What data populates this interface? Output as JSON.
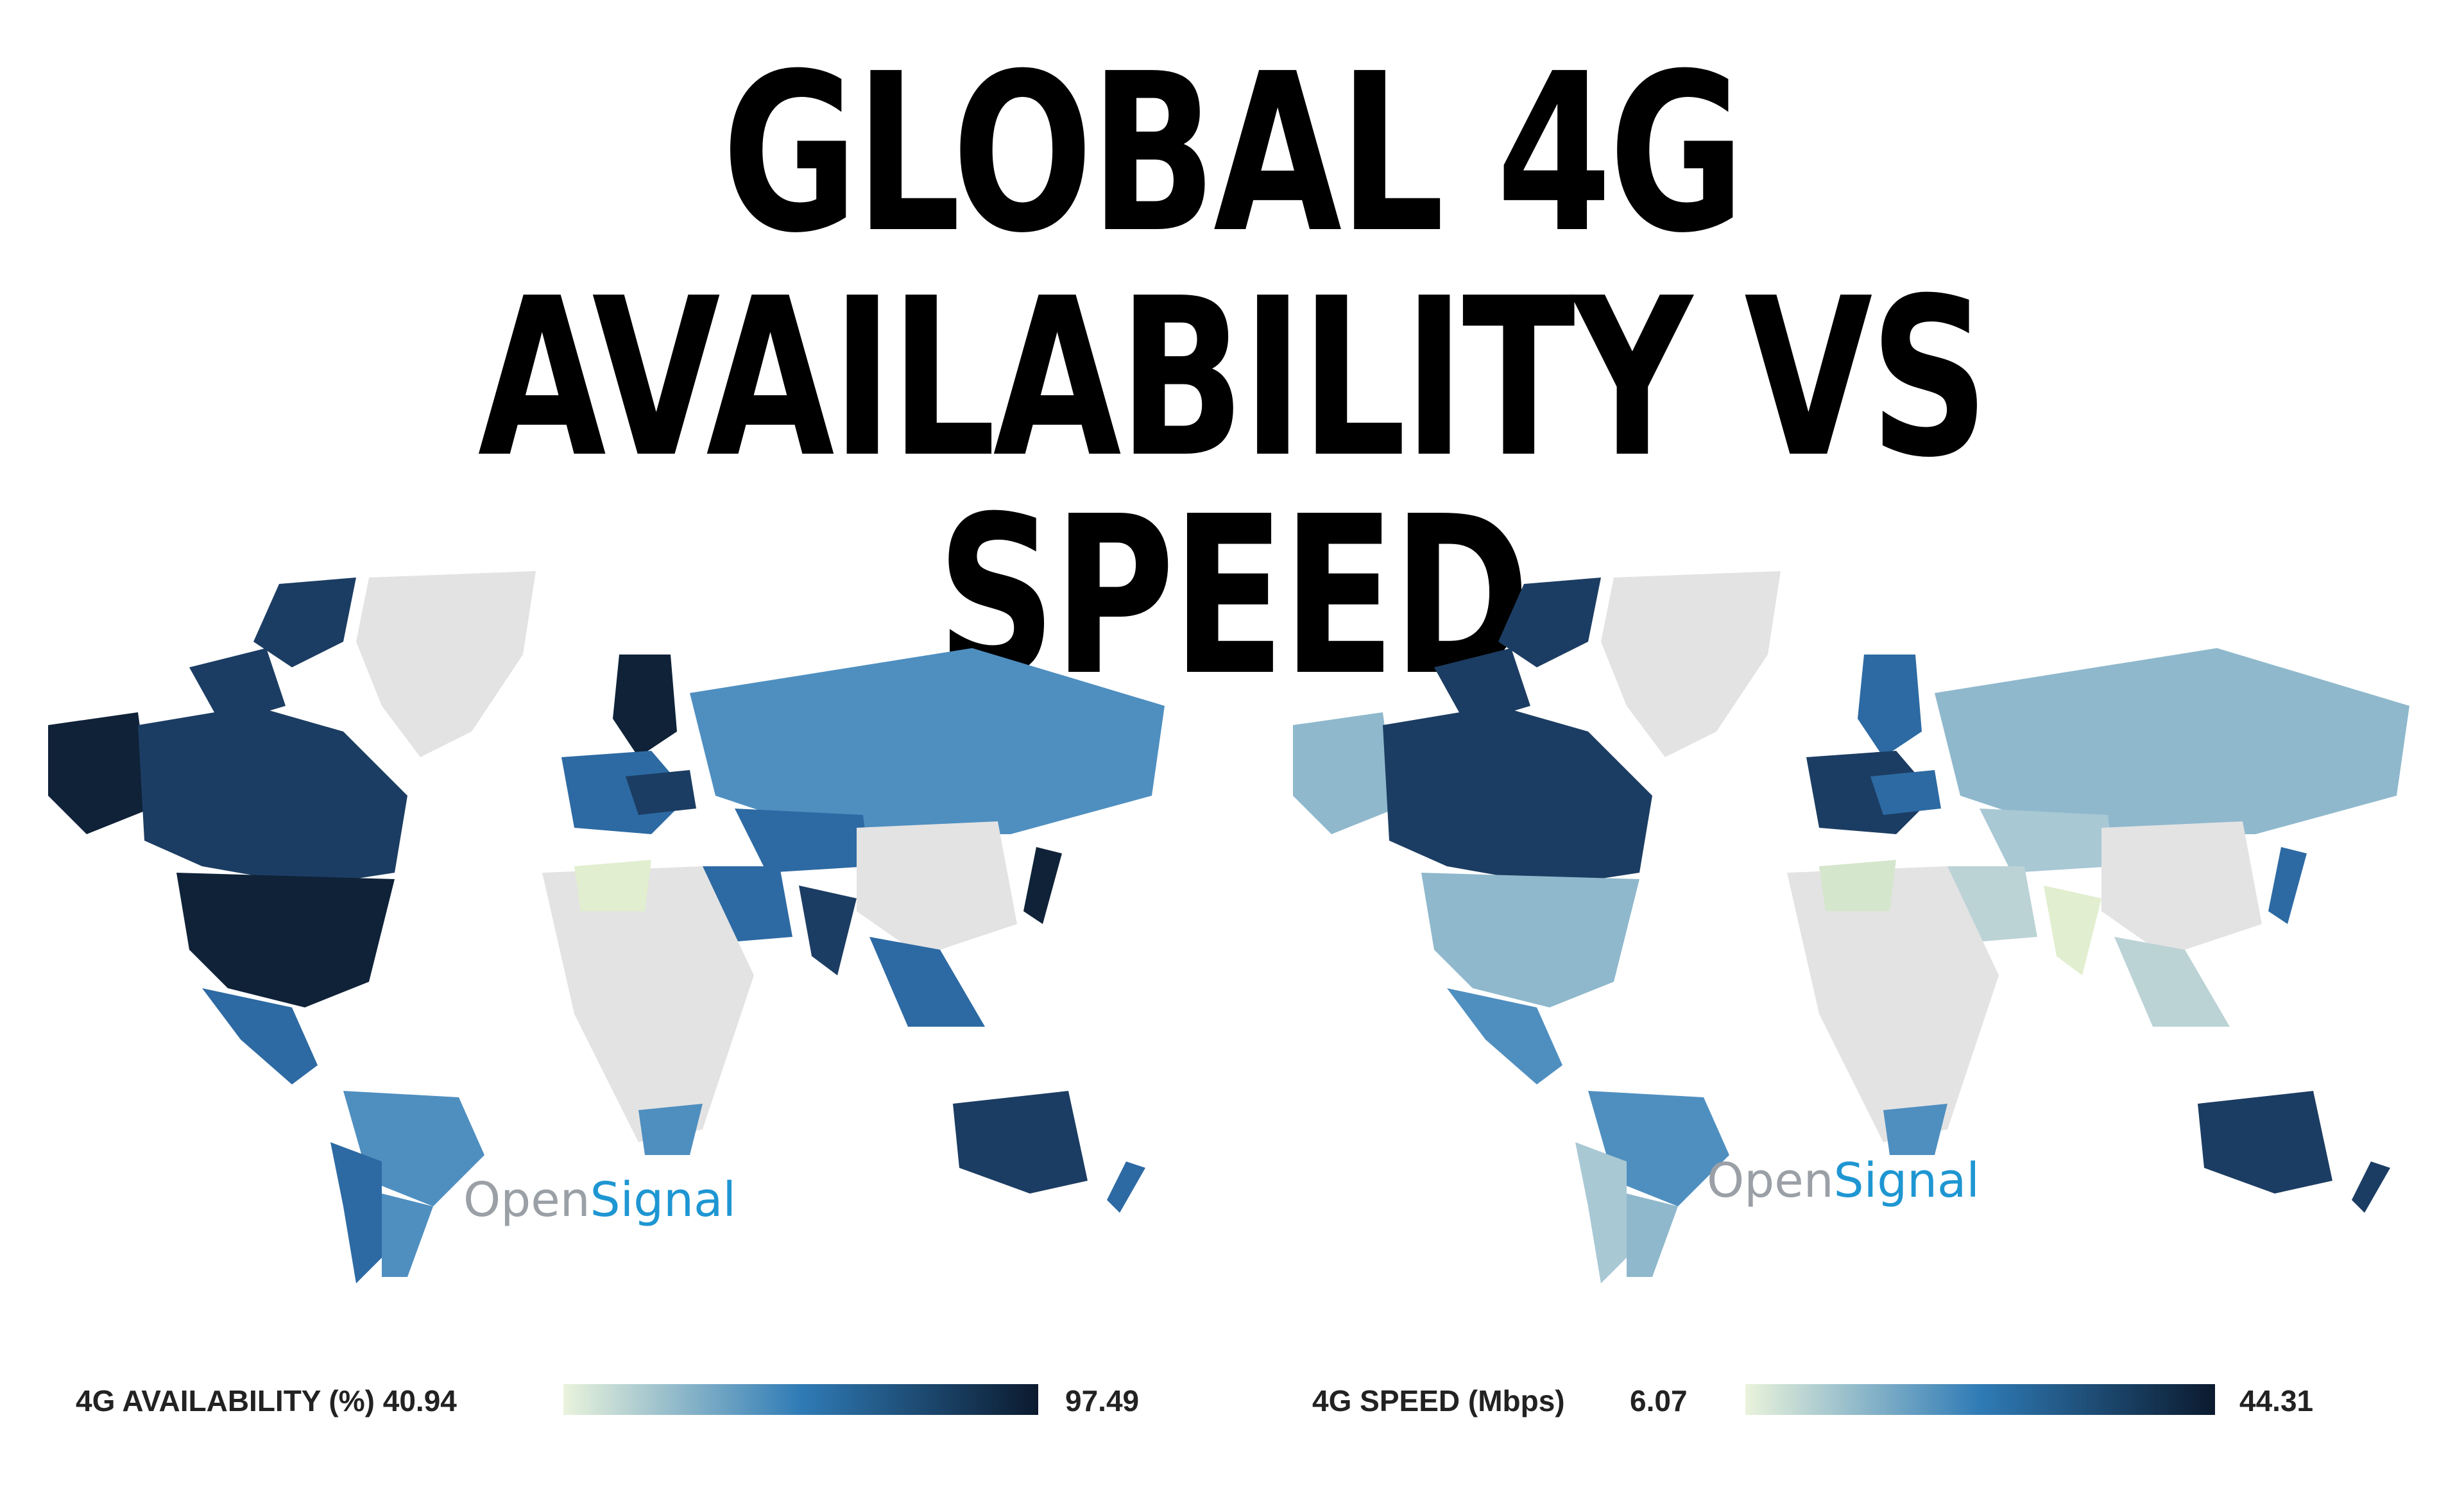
{
  "title": {
    "line1": "GLOBAL 4G",
    "line2": "AVAILABILITY VS SPEED"
  },
  "colors": {
    "scale_low": "#eaf3dc",
    "scale_mid": "#2f7bb6",
    "scale_high": "#0b1a2e",
    "no_data": "#e3e3e3",
    "brand_gray": "#9aa0a6",
    "brand_blue": "#1e96d2"
  },
  "maps": [
    {
      "brand": {
        "open": "Open",
        "signal": "Signal"
      },
      "legend": {
        "label": "4G AVAILABILITY (%) 40.94",
        "min": "40.94",
        "max": "97.49"
      }
    },
    {
      "brand": {
        "open": "Open",
        "signal": "Signal"
      },
      "legend": {
        "label": "4G SPEED (Mbps)",
        "min": "6.07",
        "max": "44.31"
      }
    }
  ]
}
